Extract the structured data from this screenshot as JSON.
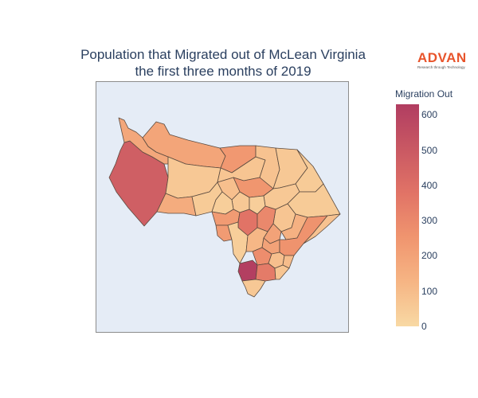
{
  "title": {
    "line1": "Population that Migrated out of McLean Virginia",
    "line2": "the first three months of 2019"
  },
  "logo": {
    "wordmark": "ADVAN",
    "tagline": "Research through Technology",
    "color": "#e8542b"
  },
  "colorbar": {
    "title": "Migration Out",
    "min": 0,
    "max": 630,
    "ticks": [
      "0",
      "100",
      "200",
      "300",
      "400",
      "500",
      "600"
    ],
    "colorscale": [
      "#f8d9a4",
      "#f6b584",
      "#f0956f",
      "#e17366",
      "#c95863",
      "#b13d61"
    ]
  },
  "map_colors": {
    "background": "#e5ecf6",
    "border": "#5a4a3f"
  },
  "regions": [
    {
      "id": "west-large-area",
      "value": 470
    },
    {
      "id": "north-strip",
      "value": 180
    },
    {
      "id": "north-center-block",
      "value": 190
    },
    {
      "id": "north-east-notch",
      "value": 240
    },
    {
      "id": "northwest-inner",
      "value": 60
    },
    {
      "id": "center-north",
      "value": 70
    },
    {
      "id": "northeast-a",
      "value": 80
    },
    {
      "id": "northeast-b",
      "value": 60
    },
    {
      "id": "northeast-c",
      "value": 50
    },
    {
      "id": "west-mid-band",
      "value": 160
    },
    {
      "id": "center-west",
      "value": 50
    },
    {
      "id": "center-blue-tract",
      "value": 250
    },
    {
      "id": "center-small-1",
      "value": 90
    },
    {
      "id": "center-small-2",
      "value": 60
    },
    {
      "id": "center-small-3",
      "value": 40
    },
    {
      "id": "east-a",
      "value": 60
    },
    {
      "id": "east-b",
      "value": 50
    },
    {
      "id": "east-c",
      "value": 40
    },
    {
      "id": "east-d",
      "value": 70
    },
    {
      "id": "central-west-orange",
      "value": 230
    },
    {
      "id": "central-red",
      "value": 380
    },
    {
      "id": "central-mid-1",
      "value": 300
    },
    {
      "id": "central-mid-2",
      "value": 200
    },
    {
      "id": "central-mid-3",
      "value": 140
    },
    {
      "id": "south-west-left",
      "value": 230
    },
    {
      "id": "south-west-tall",
      "value": 40
    },
    {
      "id": "south-center-1",
      "value": 120
    },
    {
      "id": "south-center-2",
      "value": 280
    },
    {
      "id": "south-center-3",
      "value": 200
    },
    {
      "id": "south-east-band",
      "value": 260
    },
    {
      "id": "south-east-tip",
      "value": 80
    },
    {
      "id": "south-small-a",
      "value": 90
    },
    {
      "id": "south-small-b",
      "value": 100
    },
    {
      "id": "south-crimson",
      "value": 620
    },
    {
      "id": "south-red",
      "value": 350
    },
    {
      "id": "south-light",
      "value": 70
    },
    {
      "id": "south-tail",
      "value": 60
    }
  ]
}
